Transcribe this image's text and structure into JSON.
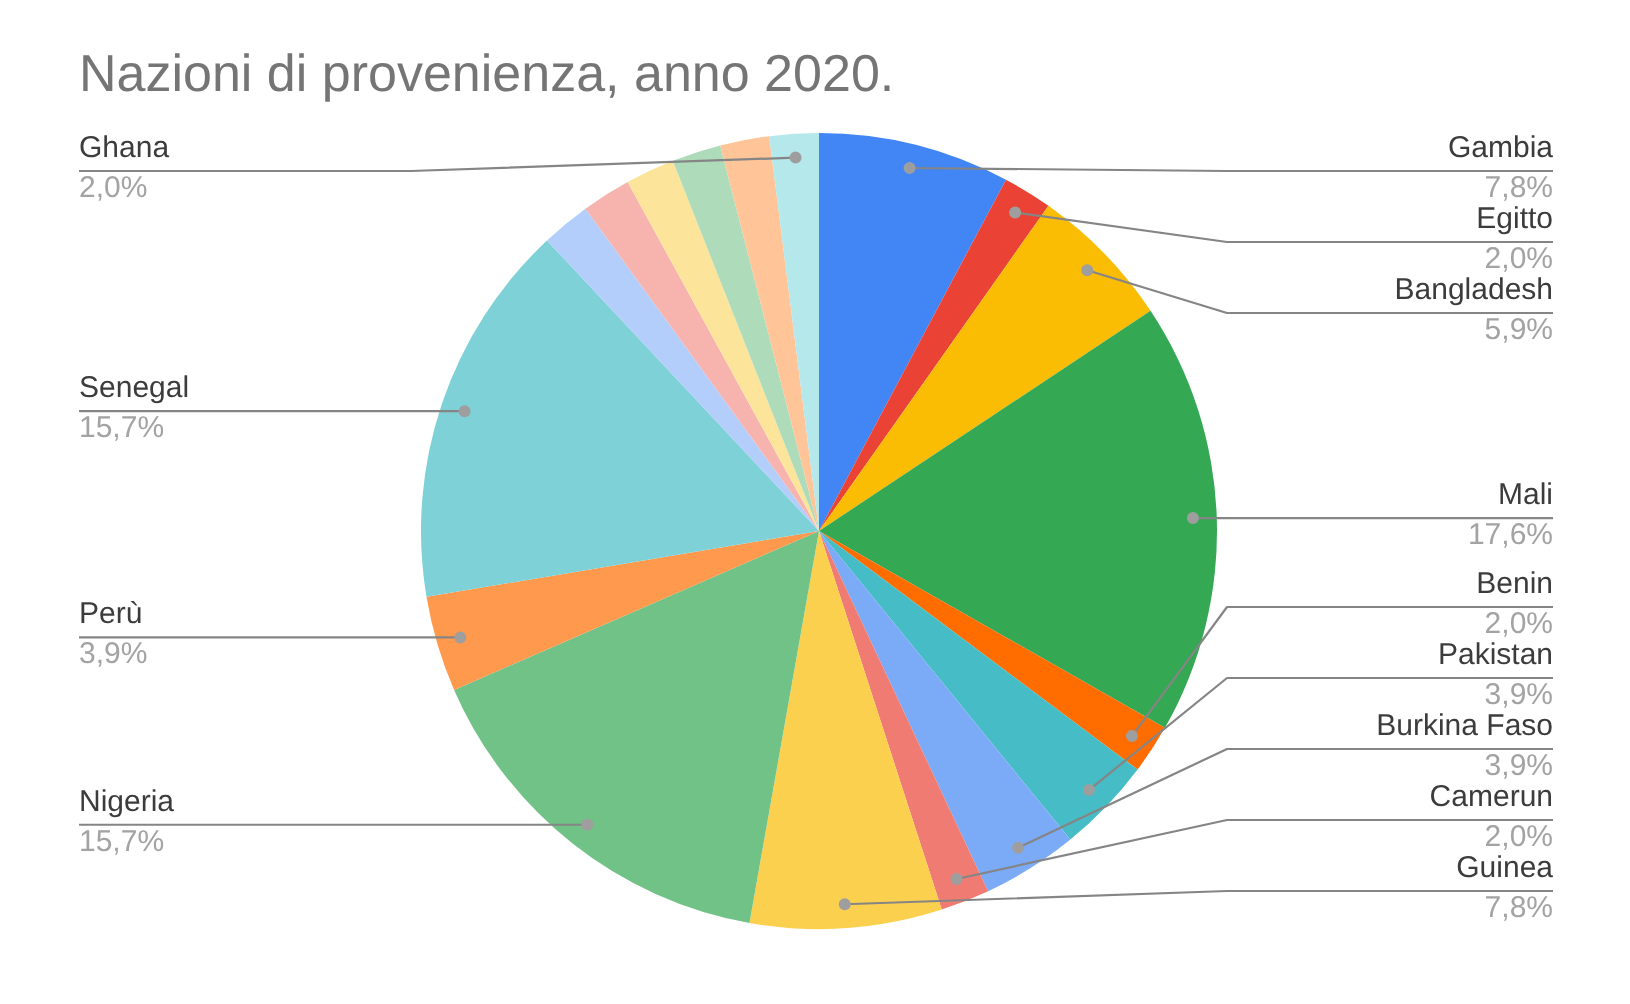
{
  "chart_data": {
    "type": "pie",
    "title": "Nazioni di provenienza, anno 2020.",
    "categories": [
      "Gambia",
      "Egitto",
      "Bangladesh",
      "Mali",
      "Benin",
      "Pakistan",
      "Burkina Faso",
      "Camerun",
      "Guinea",
      "Nigeria",
      "Perù",
      "Senegal",
      null,
      null,
      null,
      null,
      null,
      "Ghana"
    ],
    "values": [
      7.8,
      2.0,
      5.9,
      17.6,
      2.0,
      3.9,
      3.9,
      2.0,
      7.8,
      15.7,
      3.9,
      15.7,
      2.0,
      2.0,
      2.0,
      2.0,
      2.0,
      2.0
    ],
    "value_labels": [
      "7,8%",
      "2,0%",
      "5,9%",
      "17,6%",
      "2,0%",
      "3,9%",
      "3,9%",
      "2,0%",
      "7,8%",
      "15,7%",
      "3,9%",
      "15,7%",
      null,
      null,
      null,
      null,
      null,
      "2,0%"
    ],
    "colors": [
      "#4285f4",
      "#ea4335",
      "#fbbc04",
      "#34a853",
      "#ff6d01",
      "#46bdc6",
      "#7baaf7",
      "#f07b72",
      "#fcd04f",
      "#71c287",
      "#ff994d",
      "#7ed1d7",
      "#b3cefb",
      "#f7b4ae",
      "#fde49b",
      "#aedcba",
      "#ffc599",
      "#b5e8eb"
    ]
  }
}
